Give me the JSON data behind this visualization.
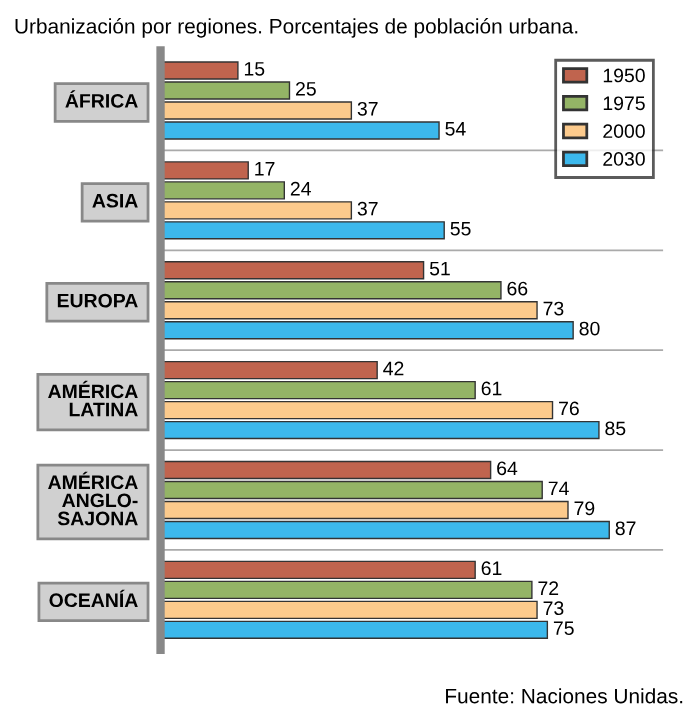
{
  "chart_data": {
    "type": "bar",
    "orientation": "horizontal",
    "title": "Urbanización por regiones. Porcentajes de población urbana.",
    "categories": [
      "ÁFRICA",
      "ASIA",
      "EUROPA",
      "AMÉRICA\nLATINA",
      "AMÉRICA\nANGLO-\nSAJONA",
      "OCEANÍA"
    ],
    "series": [
      {
        "name": "1950",
        "color": "#c0644e",
        "values": [
          15,
          17,
          51,
          42,
          64,
          61
        ]
      },
      {
        "name": "1975",
        "color": "#94b466",
        "values": [
          25,
          24,
          66,
          61,
          74,
          72
        ]
      },
      {
        "name": "2000",
        "color": "#fcca8c",
        "values": [
          37,
          37,
          73,
          76,
          79,
          73
        ]
      },
      {
        "name": "2030",
        "color": "#3cb8ec",
        "values": [
          54,
          55,
          80,
          85,
          87,
          75
        ]
      }
    ],
    "data_labels": true,
    "legend": "top right",
    "grid": false,
    "annotations": [
      "Fuente: Naciones Unidas."
    ]
  }
}
